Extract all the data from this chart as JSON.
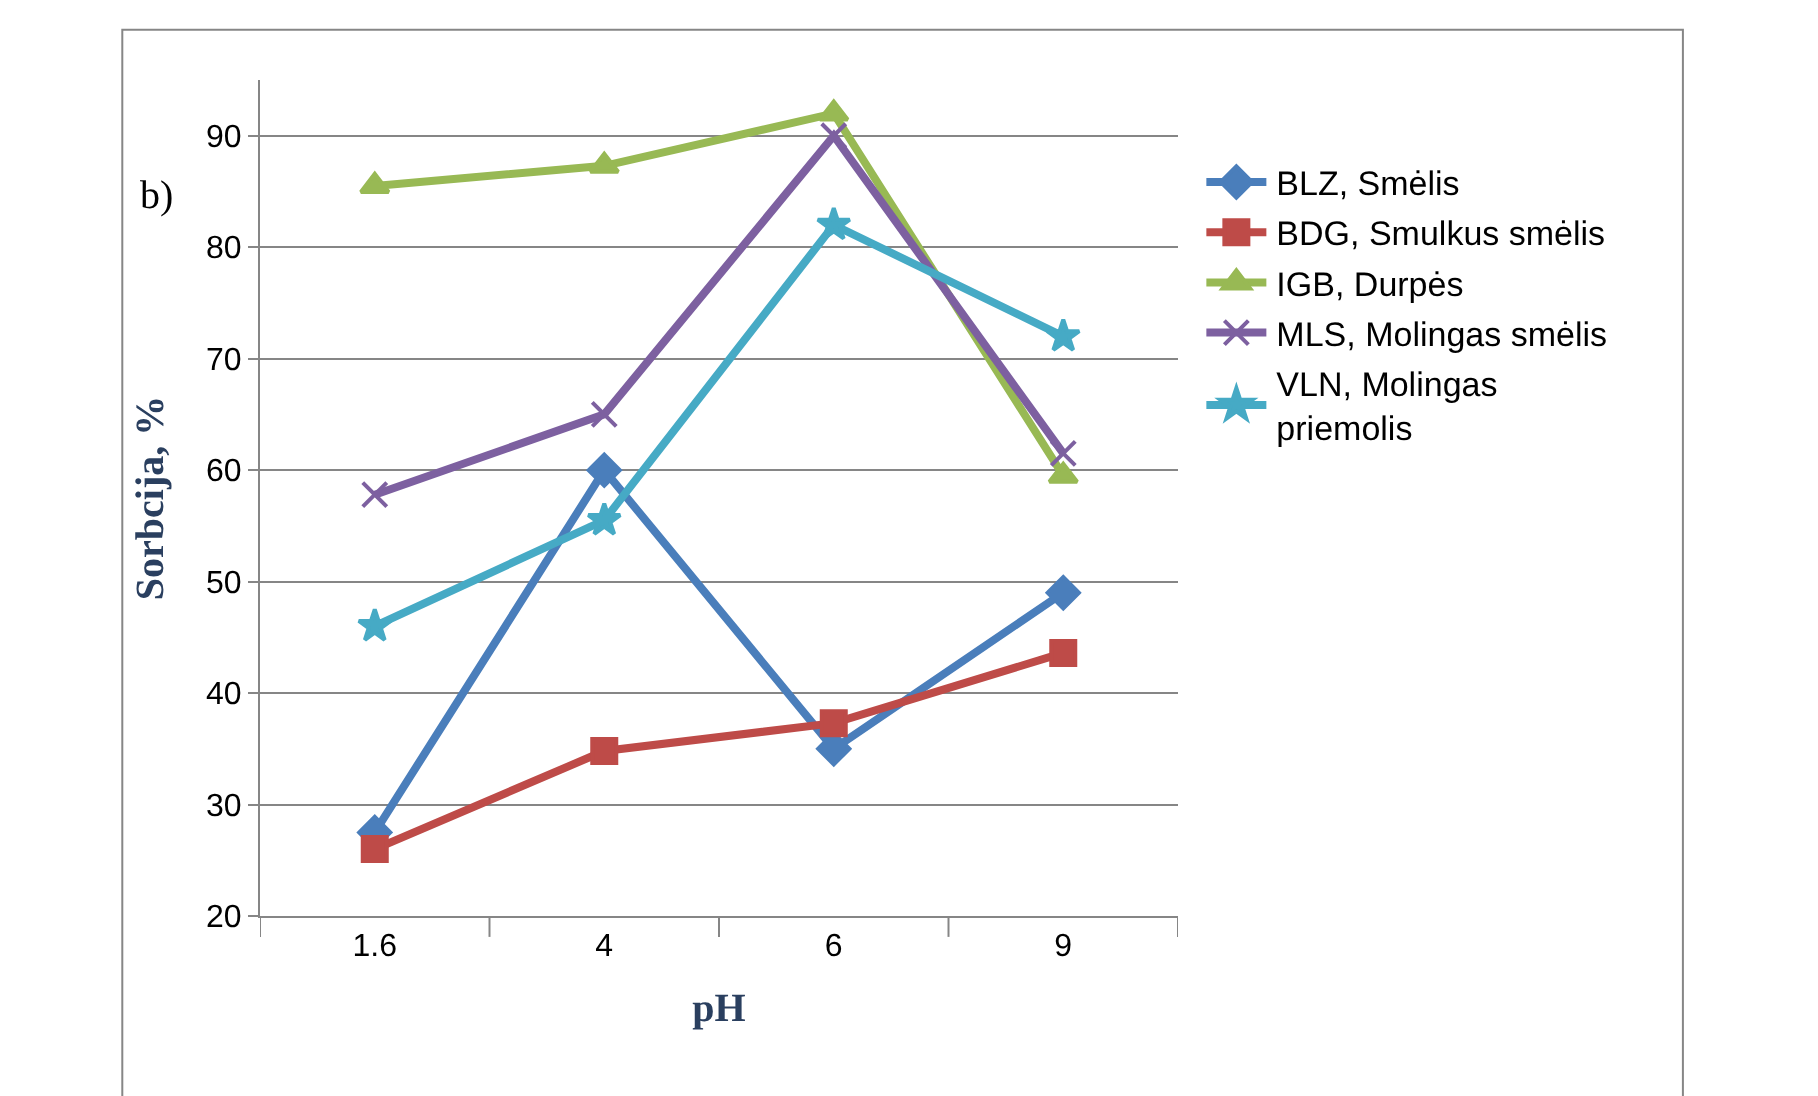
{
  "chart_data": {
    "type": "line",
    "xlabel": "pH",
    "ylabel": "Sorbcija, %",
    "categories": [
      "1.6",
      "4",
      "6",
      "9"
    ],
    "ylim": [
      20,
      95
    ],
    "yticks": [
      20,
      30,
      40,
      50,
      60,
      70,
      80,
      90
    ],
    "grid": "y",
    "legend": "right",
    "annotations": [
      "b)"
    ],
    "series": [
      {
        "name": "BLZ, Smėlis",
        "color": "#4a7ebb",
        "marker": "diamond",
        "values": [
          27.5,
          60,
          35,
          49
        ]
      },
      {
        "name": "BDG, Smulkus smėlis",
        "color": "#be4b48",
        "marker": "square",
        "values": [
          26,
          34.8,
          37.3,
          43.6
        ]
      },
      {
        "name": "IGB, Durpės",
        "color": "#98b954",
        "marker": "triangle",
        "values": [
          85.5,
          87.3,
          92,
          59.5
        ]
      },
      {
        "name": "MLS, Molingas smėlis",
        "color": "#7d60a0",
        "marker": "cross",
        "values": [
          57.8,
          65,
          90,
          61.5
        ]
      },
      {
        "name": "VLN, Molingas priemolis",
        "color": "#46aac5",
        "marker": "star",
        "values": [
          46,
          55.5,
          82,
          72
        ]
      }
    ]
  }
}
